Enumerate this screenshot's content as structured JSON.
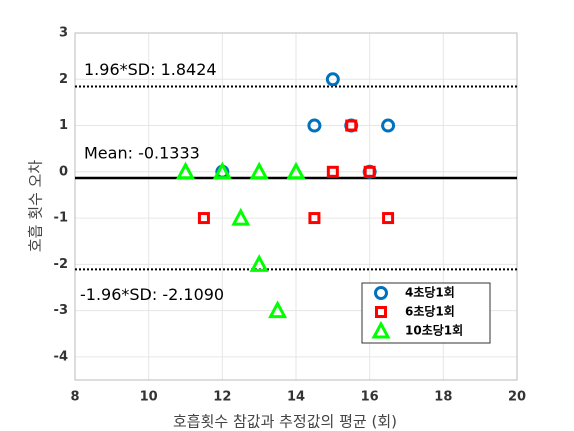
{
  "chart_data": {
    "type": "scatter",
    "xlabel": "호흡횟수 참값과 추정값의 평균 (회)",
    "ylabel": "호흡 횟수 오차",
    "xlim": [
      8,
      20
    ],
    "xticks": [
      8,
      10,
      12,
      14,
      16,
      18,
      20
    ],
    "ylim": [
      -4.5,
      3
    ],
    "yticks": [
      -4,
      -3,
      -2,
      -1,
      0,
      1,
      2,
      3
    ],
    "grid": true,
    "legend": "lower right",
    "series": [
      {
        "name": "4초당1회",
        "color": "#0072bd",
        "marker": "circle",
        "x": [
          12,
          14.5,
          15,
          15.5,
          16,
          16.5
        ],
        "values": [
          0,
          1,
          2,
          1,
          0,
          1
        ]
      },
      {
        "name": "6초당1회",
        "color": "#ff0000",
        "marker": "square",
        "x": [
          11.5,
          14.5,
          15,
          15.5,
          16,
          16.5
        ],
        "values": [
          -1,
          -1,
          0,
          1,
          0,
          -1
        ]
      },
      {
        "name": "10초당1회",
        "color": "#00ff00",
        "marker": "triangle",
        "x": [
          11,
          12,
          12.5,
          13,
          13,
          13.5,
          14
        ],
        "values": [
          0,
          0,
          -1,
          0,
          -2,
          -3,
          0
        ]
      }
    ],
    "reference_lines": [
      {
        "value": 1.8424,
        "label": "1.96*SD: 1.8424",
        "style": "dotted"
      },
      {
        "value": -0.1333,
        "label": "Mean: -0.1333",
        "style": "solid"
      },
      {
        "value": -2.109,
        "label": "-1.96*SD: -2.1090",
        "style": "dotted"
      }
    ]
  }
}
